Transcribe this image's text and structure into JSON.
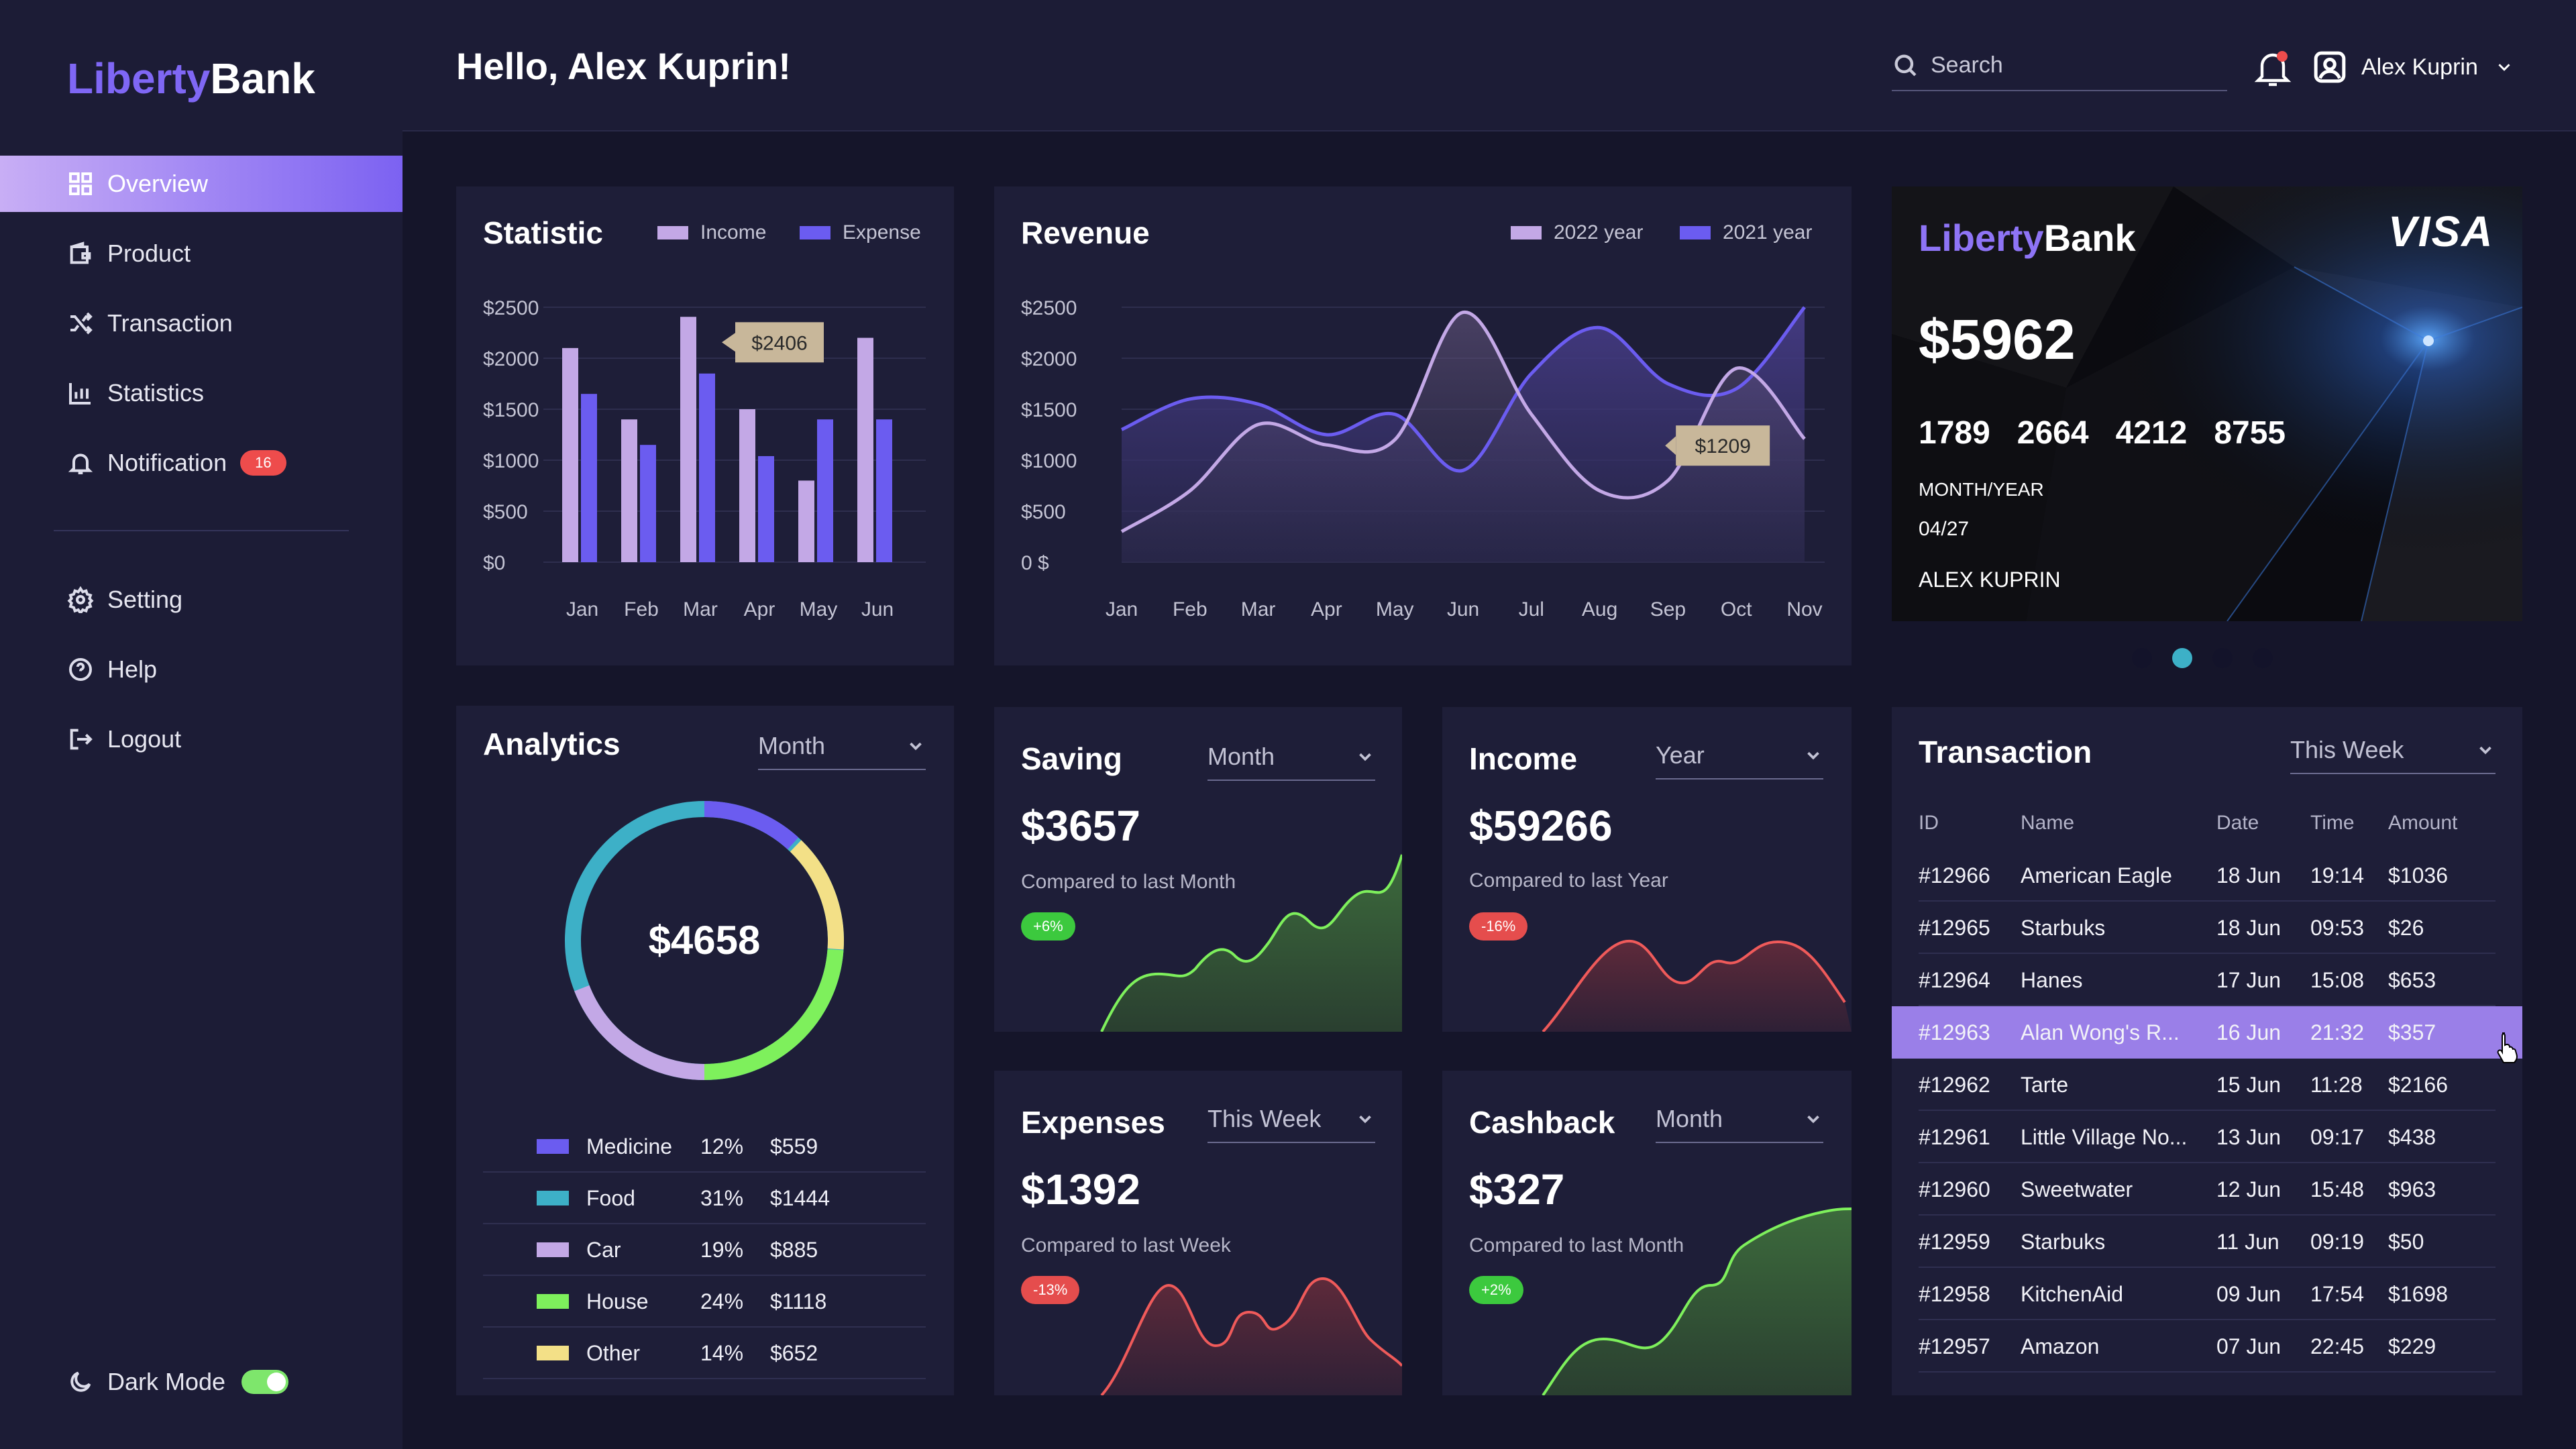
{
  "brand": {
    "part1": "Liberty",
    "part2": "Bank"
  },
  "sidebar": {
    "items": [
      {
        "label": "Overview"
      },
      {
        "label": "Product"
      },
      {
        "label": "Transaction"
      },
      {
        "label": "Statistics"
      },
      {
        "label": "Notification",
        "badge": "16"
      }
    ],
    "bottom_items": [
      {
        "label": "Setting"
      },
      {
        "label": "Help"
      },
      {
        "label": "Logout"
      }
    ],
    "dark_mode_label": "Dark Mode",
    "dark_mode_on": true
  },
  "header": {
    "greeting": "Hello, Alex Kuprin!",
    "search_placeholder": "Search",
    "user_name": "Alex Kuprin"
  },
  "statistic": {
    "title": "Statistic",
    "legend": [
      "Income",
      "Expense"
    ],
    "tooltip": "$2406",
    "colors": {
      "income": "#c3a8e6",
      "expense": "#6b5cf0"
    }
  },
  "revenue": {
    "title": "Revenue",
    "legend": [
      "2022 year",
      "2021 year"
    ],
    "tooltip": "$1209",
    "colors": {
      "y2022": "#c3a8e6",
      "y2021": "#6b5cf0"
    }
  },
  "chart_data": [
    {
      "type": "bar",
      "title": "Statistic",
      "categories": [
        "Jan",
        "Feb",
        "Mar",
        "Apr",
        "May",
        "Jun"
      ],
      "series": [
        {
          "name": "Income",
          "values": [
            2100,
            1400,
            2406,
            1500,
            800,
            2200
          ]
        },
        {
          "name": "Expense",
          "values": [
            1650,
            1150,
            1850,
            1040,
            1400,
            1400
          ]
        }
      ],
      "y_ticks": [
        "$2500",
        "$2000",
        "$1500",
        "$1000",
        "$500",
        "$0"
      ],
      "ylim": [
        0,
        2500
      ],
      "annotation": "$2406"
    },
    {
      "type": "line",
      "title": "Revenue",
      "categories": [
        "Jan",
        "Feb",
        "Mar",
        "Apr",
        "May",
        "Jun",
        "Jul",
        "Aug",
        "Sep",
        "Oct",
        "Nov"
      ],
      "series": [
        {
          "name": "2022 year",
          "values": [
            300,
            700,
            1350,
            1150,
            1200,
            2450,
            1450,
            700,
            800,
            1900,
            1209
          ]
        },
        {
          "name": "2021 year",
          "values": [
            1300,
            1600,
            1550,
            1250,
            1450,
            900,
            1850,
            2300,
            1750,
            1700,
            2500
          ]
        }
      ],
      "y_ticks": [
        "$2500",
        "$2000",
        "$1500",
        "$1000",
        "$500",
        "0 $"
      ],
      "ylim": [
        0,
        2500
      ],
      "annotation": "$1209"
    },
    {
      "type": "pie",
      "title": "Analytics",
      "total": "$4658",
      "categories": [
        "Medicine",
        "Food",
        "Car",
        "House",
        "Other"
      ],
      "values": [
        12,
        31,
        19,
        24,
        14
      ]
    }
  ],
  "credit_card": {
    "brand_part1": "Liberty",
    "brand_part2": "Bank",
    "network": "VISA",
    "balance": "$5962",
    "number_groups": [
      "1789",
      "2664",
      "4212",
      "8755"
    ],
    "expiry_label": "MONTH/YEAR",
    "expiry": "04/27",
    "holder": "ALEX KUPRIN",
    "active_dot": 1,
    "dot_count": 4
  },
  "analytics": {
    "title": "Analytics",
    "period": "Month",
    "total": "$4658",
    "items": [
      {
        "name": "Medicine",
        "pct": "12%",
        "amount": "$559",
        "color": "#6b5cf0"
      },
      {
        "name": "Food",
        "pct": "31%",
        "amount": "$1444",
        "color": "#3db0c7"
      },
      {
        "name": "Car",
        "pct": "19%",
        "amount": "$885",
        "color": "#c3a8e6"
      },
      {
        "name": "House",
        "pct": "24%",
        "amount": "$1118",
        "color": "#7ef05c"
      },
      {
        "name": "Other",
        "pct": "14%",
        "amount": "$652",
        "color": "#f3e087"
      }
    ]
  },
  "saving": {
    "title": "Saving",
    "period": "Month",
    "value": "$3657",
    "compare": "Compared to last Month",
    "change": "+6%"
  },
  "income": {
    "title": "Income",
    "period": "Year",
    "value": "$59266",
    "compare": "Compared to last Year",
    "change": "-16%"
  },
  "expenses": {
    "title": "Expenses",
    "period": "This Week",
    "value": "$1392",
    "compare": "Compared to last Week",
    "change": "-13%"
  },
  "cashback": {
    "title": "Cashback",
    "period": "Month",
    "value": "$327",
    "compare": "Compared to last Month",
    "change": "+2%"
  },
  "transactions": {
    "title": "Transaction",
    "period": "This Week",
    "columns": [
      "ID",
      "Name",
      "Date",
      "Time",
      "Amount"
    ],
    "rows": [
      {
        "id": "#12966",
        "name": "American Eagle",
        "date": "18 Jun",
        "time": "19:14",
        "amount": "$1036"
      },
      {
        "id": "#12965",
        "name": "Starbuks",
        "date": "18 Jun",
        "time": "09:53",
        "amount": "$26"
      },
      {
        "id": "#12964",
        "name": "Hanes",
        "date": "17 Jun",
        "time": "15:08",
        "amount": "$653"
      },
      {
        "id": "#12963",
        "name": "Alan Wong's R...",
        "date": "16 Jun",
        "time": "21:32",
        "amount": "$357"
      },
      {
        "id": "#12962",
        "name": "Tarte",
        "date": "15 Jun",
        "time": "11:28",
        "amount": "$2166"
      },
      {
        "id": "#12961",
        "name": "Little Village No...",
        "date": "13 Jun",
        "time": "09:17",
        "amount": "$438"
      },
      {
        "id": "#12960",
        "name": "Sweetwater",
        "date": "12 Jun",
        "time": "15:48",
        "amount": "$963"
      },
      {
        "id": "#12959",
        "name": "Starbuks",
        "date": "11 Jun",
        "time": "09:19",
        "amount": "$50"
      },
      {
        "id": "#12958",
        "name": "KitchenAid",
        "date": "09 Jun",
        "time": "17:54",
        "amount": "$1698"
      },
      {
        "id": "#12957",
        "name": "Amazon",
        "date": "07 Jun",
        "time": "22:45",
        "amount": "$229"
      }
    ],
    "highlighted_row": 3
  }
}
